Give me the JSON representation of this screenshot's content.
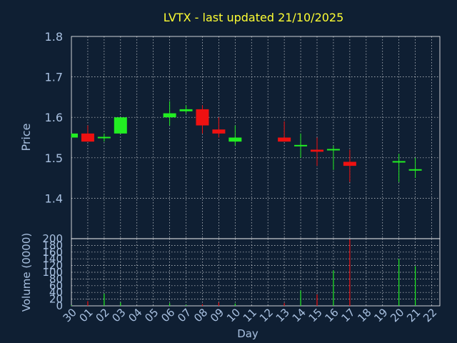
{
  "colors": {
    "background": "#0f1f33",
    "title": "#ffff33",
    "axis_text": "#a8c0e0",
    "frame": "#ffffff",
    "up": "#22ee22",
    "down": "#ee1111"
  },
  "chart_data": [
    {
      "type": "candlestick",
      "title": "LVTX - last updated 21/10/2025",
      "ylabel": "Price",
      "ylim": [
        1.3,
        1.8
      ],
      "yticks": [
        1.4,
        1.5,
        1.6,
        1.7,
        1.8
      ],
      "grid": true,
      "candles": [
        {
          "day": "30",
          "open": 1.55,
          "high": 1.56,
          "low": 1.55,
          "close": 1.56
        },
        {
          "day": "01",
          "open": 1.56,
          "high": 1.58,
          "low": 1.54,
          "close": 1.54
        },
        {
          "day": "02",
          "open": 1.55,
          "high": 1.56,
          "low": 1.54,
          "close": 1.55
        },
        {
          "day": "03",
          "open": 1.56,
          "high": 1.6,
          "low": 1.56,
          "close": 1.6
        },
        {
          "day": "06",
          "open": 1.6,
          "high": 1.64,
          "low": 1.58,
          "close": 1.61
        },
        {
          "day": "07",
          "open": 1.615,
          "high": 1.63,
          "low": 1.61,
          "close": 1.62
        },
        {
          "day": "08",
          "open": 1.62,
          "high": 1.63,
          "low": 1.56,
          "close": 1.58
        },
        {
          "day": "09",
          "open": 1.57,
          "high": 1.6,
          "low": 1.55,
          "close": 1.56
        },
        {
          "day": "10",
          "open": 1.54,
          "high": 1.58,
          "low": 1.53,
          "close": 1.55
        },
        {
          "day": "13",
          "open": 1.55,
          "high": 1.59,
          "low": 1.54,
          "close": 1.54
        },
        {
          "day": "14",
          "open": 1.53,
          "high": 1.56,
          "low": 1.5,
          "close": 1.53
        },
        {
          "day": "15",
          "open": 1.52,
          "high": 1.55,
          "low": 1.48,
          "close": 1.515
        },
        {
          "day": "16",
          "open": 1.52,
          "high": 1.53,
          "low": 1.47,
          "close": 1.52
        },
        {
          "day": "17",
          "open": 1.49,
          "high": 1.52,
          "low": 1.44,
          "close": 1.48
        },
        {
          "day": "20",
          "open": 1.49,
          "high": 1.51,
          "low": 1.44,
          "close": 1.49
        },
        {
          "day": "21",
          "open": 1.47,
          "high": 1.5,
          "low": 1.45,
          "close": 1.47
        }
      ]
    },
    {
      "type": "bar",
      "ylabel": "Volume (0000)",
      "xlabel": "Day",
      "ylim": [
        0,
        200
      ],
      "yticks": [
        0,
        20,
        40,
        60,
        80,
        100,
        120,
        140,
        160,
        180,
        200
      ],
      "grid": true,
      "categories": [
        "30",
        "01",
        "02",
        "03",
        "04",
        "05",
        "06",
        "07",
        "08",
        "09",
        "10",
        "11",
        "12",
        "13",
        "14",
        "15",
        "16",
        "17",
        "18",
        "19",
        "20",
        "21",
        "22"
      ],
      "bars": [
        {
          "day": "30",
          "value": 2,
          "dir": "up"
        },
        {
          "day": "01",
          "value": 14,
          "dir": "down"
        },
        {
          "day": "02",
          "value": 36,
          "dir": "up"
        },
        {
          "day": "03",
          "value": 10,
          "dir": "up"
        },
        {
          "day": "06",
          "value": 8,
          "dir": "up"
        },
        {
          "day": "07",
          "value": 3,
          "dir": "up"
        },
        {
          "day": "08",
          "value": 5,
          "dir": "down"
        },
        {
          "day": "09",
          "value": 10,
          "dir": "down"
        },
        {
          "day": "10",
          "value": 7,
          "dir": "up"
        },
        {
          "day": "13",
          "value": 8,
          "dir": "down"
        },
        {
          "day": "14",
          "value": 46,
          "dir": "up"
        },
        {
          "day": "15",
          "value": 34,
          "dir": "down"
        },
        {
          "day": "16",
          "value": 106,
          "dir": "up"
        },
        {
          "day": "17",
          "value": 198,
          "dir": "down"
        },
        {
          "day": "20",
          "value": 140,
          "dir": "up"
        },
        {
          "day": "21",
          "value": 118,
          "dir": "up"
        }
      ]
    }
  ]
}
